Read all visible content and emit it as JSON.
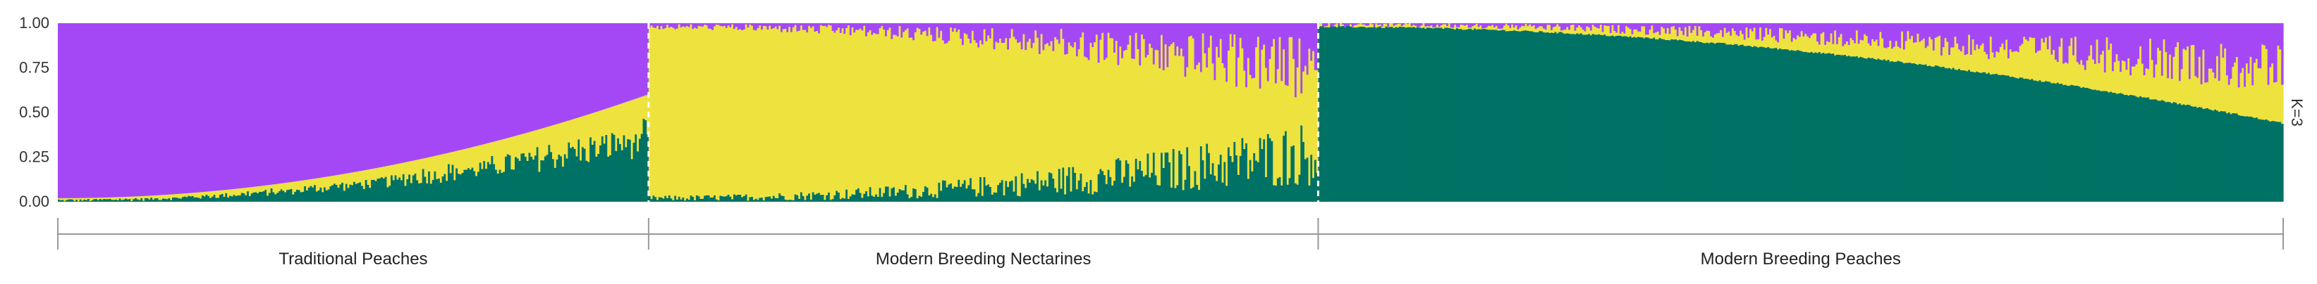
{
  "chart_data": {
    "type": "stacked-bar",
    "ylim": [
      0,
      1
    ],
    "yticks": [
      "0.00",
      "0.25",
      "0.50",
      "0.75",
      "1.00"
    ],
    "k_label": "K=3",
    "grid": false,
    "legend": "none",
    "colors": {
      "cluster_purple": "#a448f6",
      "cluster_yellow": "#eee23f",
      "cluster_green": "#007265",
      "separator": "#ffffff",
      "axis": "#999999"
    },
    "groups": [
      {
        "name": "Traditional Peaches",
        "individuals": 300,
        "green_start": 0.01,
        "green_end": 0.37,
        "yellow_start": 0.01,
        "yellow_end": 0.2,
        "purple_start": 0.98,
        "purple_end": 0.43
      },
      {
        "name": "Modern Breeding Nectarines",
        "individuals": 340,
        "green_start": 0.02,
        "green_end": 0.28,
        "yellow_start": 0.96,
        "yellow_end": 0.45,
        "purple_start": 0.02,
        "purple_end": 0.27
      },
      {
        "name": "Modern Breeding Peaches",
        "individuals": 490,
        "green_start": 0.98,
        "green_end": 0.44,
        "yellow_start": 0.01,
        "yellow_end": 0.3,
        "purple_start": 0.01,
        "purple_end": 0.26
      }
    ]
  }
}
